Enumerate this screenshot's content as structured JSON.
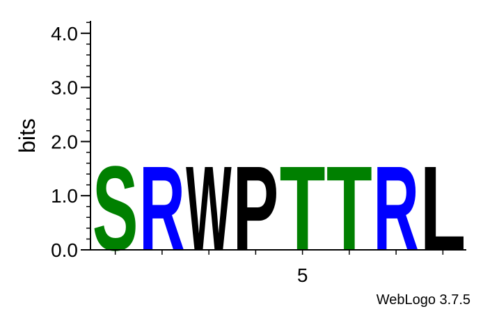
{
  "chart_data": {
    "type": "sequence-logo",
    "ylabel": "bits",
    "ylim": [
      0,
      4.3
    ],
    "y_ticks": [
      0.0,
      1.0,
      2.0,
      3.0,
      4.0
    ],
    "y_tick_labels": [
      "0.0",
      "1.0",
      "2.0",
      "3.0",
      "4.0"
    ],
    "x_tick_labels": [
      {
        "position": 5,
        "label": "5"
      }
    ],
    "positions": [
      1,
      2,
      3,
      4,
      5,
      6,
      7,
      8
    ],
    "letters": [
      {
        "position": 1,
        "letter": "S",
        "bits": 1.6,
        "color": "#008000"
      },
      {
        "position": 2,
        "letter": "R",
        "bits": 1.6,
        "color": "#0000ff"
      },
      {
        "position": 3,
        "letter": "W",
        "bits": 1.6,
        "color": "#000000"
      },
      {
        "position": 4,
        "letter": "P",
        "bits": 1.6,
        "color": "#000000"
      },
      {
        "position": 5,
        "letter": "T",
        "bits": 1.6,
        "color": "#008000"
      },
      {
        "position": 6,
        "letter": "T",
        "bits": 1.6,
        "color": "#008000"
      },
      {
        "position": 7,
        "letter": "R",
        "bits": 1.6,
        "color": "#0000ff"
      },
      {
        "position": 8,
        "letter": "L",
        "bits": 1.6,
        "color": "#000000"
      }
    ]
  },
  "credit": "WebLogo 3.7.5"
}
